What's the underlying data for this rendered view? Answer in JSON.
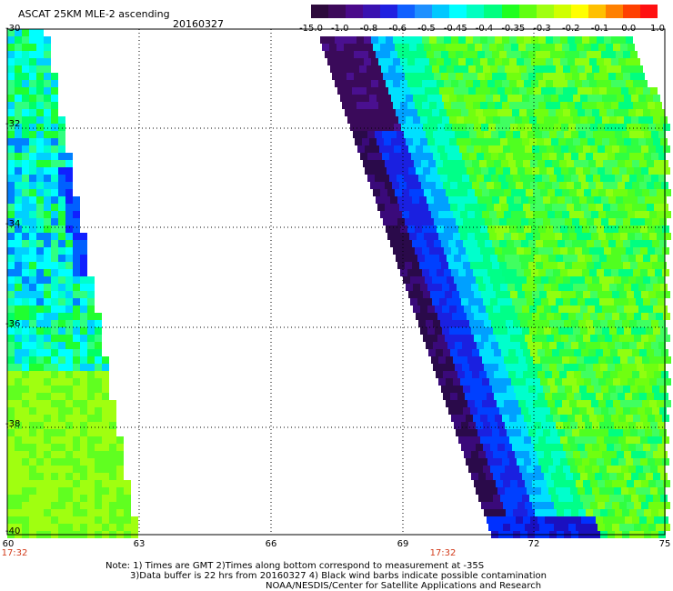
{
  "header": {
    "title": "ASCAT 25KM MLE-2 ascending",
    "date": "20160327"
  },
  "colorbar": {
    "colors": [
      "#2d0a3c",
      "#3d0a5a",
      "#4a0a8a",
      "#3a12b0",
      "#2020e0",
      "#1060ff",
      "#1e90ff",
      "#00c8ff",
      "#00ffff",
      "#00ffc0",
      "#00ff80",
      "#20ff20",
      "#60ff10",
      "#a0ff10",
      "#d0ff00",
      "#ffff00",
      "#ffc000",
      "#ff8000",
      "#ff4000",
      "#ff1010"
    ],
    "labels": [
      "-15.0",
      "-1.0",
      "-0.8",
      "-0.6",
      "-0.5",
      "-0.45",
      "-0.4",
      "-0.35",
      "-0.3",
      "-0.2",
      "-0.1",
      "0.0",
      "1.0"
    ]
  },
  "map": {
    "lat_ticks": [
      "-30",
      "-32",
      "-34",
      "-36",
      "-38",
      "-40"
    ],
    "lon_ticks": [
      "60",
      "63",
      "66",
      "69",
      "72",
      "75"
    ],
    "time_labels": [
      "17:32",
      "17:32"
    ],
    "lat_range": [
      -40,
      -30
    ],
    "lon_range": [
      60,
      75
    ]
  },
  "notes": {
    "line1": "Note: 1) Times are GMT 2)Times along bottom correspond to measurement at -35S",
    "line2": "3)Data buffer is 22 hrs from 20160327 4) Black wind barbs indicate possible contamination",
    "line3": "NOAA/NESDIS/Center for Satellite Applications and Research"
  }
}
